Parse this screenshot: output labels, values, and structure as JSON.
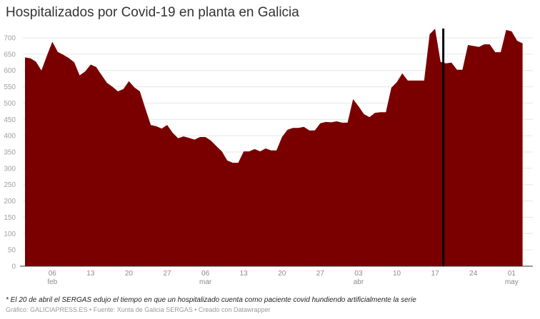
{
  "title": "Hospitalizados por Covid-19 en planta en Galicia",
  "note": "* El 20 de abril el SERGAS edujo el tiempo en que un hospitalizado cuenta como paciente covid hundiendo artificialmente la serie",
  "source": "Gráfico: GALICIAPRESS.ES • Fuente: Xunta de Galicia SERGAS • Creado con Datawrapper",
  "colors": {
    "area": "#7a0000",
    "marker": "#000000",
    "grid": "#e6e6e6",
    "axis": "#333333"
  },
  "chart_data": {
    "type": "area",
    "title": "Hospitalizados por Covid-19 en planta en Galicia",
    "xlabel": "",
    "ylabel": "",
    "ylim": [
      0,
      700
    ],
    "yticks": [
      0,
      50,
      100,
      150,
      200,
      250,
      300,
      350,
      400,
      450,
      500,
      550,
      600,
      650,
      700
    ],
    "grid": true,
    "xticks": [
      {
        "day": 5,
        "label": "06",
        "month": "feb"
      },
      {
        "day": 12,
        "label": "13",
        "month": ""
      },
      {
        "day": 19,
        "label": "20",
        "month": ""
      },
      {
        "day": 26,
        "label": "27",
        "month": ""
      },
      {
        "day": 33,
        "label": "06",
        "month": "mar"
      },
      {
        "day": 40,
        "label": "13",
        "month": ""
      },
      {
        "day": 47,
        "label": "20",
        "month": ""
      },
      {
        "day": 54,
        "label": "27",
        "month": ""
      },
      {
        "day": 61,
        "label": "03",
        "month": "abr"
      },
      {
        "day": 68,
        "label": "10",
        "month": ""
      },
      {
        "day": 75,
        "label": "17",
        "month": ""
      },
      {
        "day": 82,
        "label": "24",
        "month": ""
      },
      {
        "day": 89,
        "label": "01",
        "month": "may"
      }
    ],
    "marker_day": 76.5,
    "x_start": "01 feb",
    "values": [
      640,
      637,
      627,
      600,
      645,
      688,
      657,
      648,
      638,
      625,
      585,
      597,
      618,
      611,
      586,
      562,
      550,
      536,
      543,
      567,
      548,
      536,
      484,
      433,
      429,
      422,
      433,
      409,
      392,
      398,
      393,
      388,
      396,
      396,
      385,
      368,
      352,
      324,
      317,
      317,
      352,
      352,
      359,
      352,
      361,
      355,
      355,
      396,
      418,
      424,
      424,
      427,
      416,
      416,
      438,
      442,
      441,
      444,
      440,
      440,
      512,
      490,
      466,
      457,
      470,
      472,
      472,
      547,
      564,
      591,
      569,
      569,
      569,
      569,
      711,
      728,
      626,
      622,
      624,
      602,
      602,
      678,
      675,
      672,
      680,
      680,
      656,
      656,
      724,
      720,
      691,
      683
    ]
  }
}
